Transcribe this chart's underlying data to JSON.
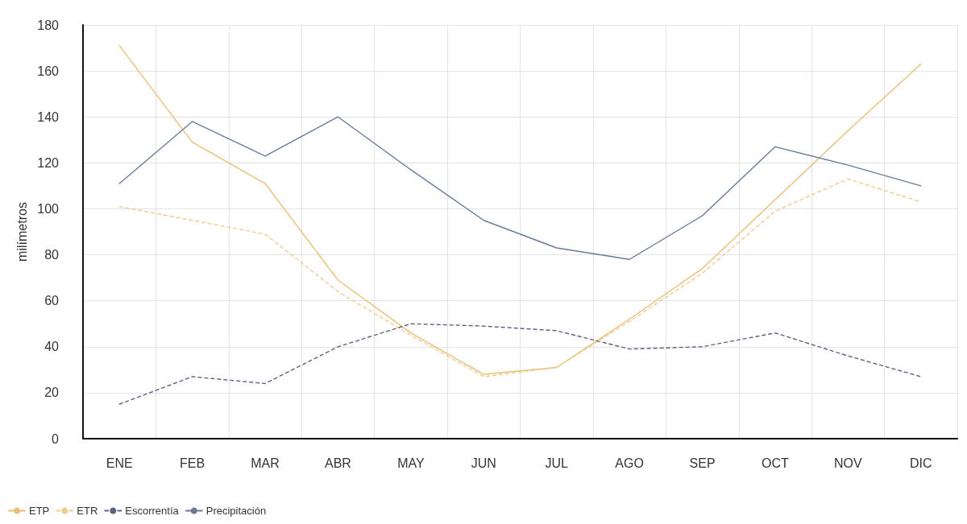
{
  "chart_data": {
    "type": "line",
    "ylabel": "milímetros",
    "categories": [
      "ENE",
      "FEB",
      "MAR",
      "ABR",
      "MAY",
      "JUN",
      "JUL",
      "AGO",
      "SEP",
      "OCT",
      "NOV",
      "DIC"
    ],
    "series": [
      {
        "name": "ETP",
        "color": "#e8c07a",
        "line_style": "solid",
        "values": [
          171,
          129,
          111,
          69,
          46,
          28,
          31,
          52,
          74,
          104,
          134,
          163
        ]
      },
      {
        "name": "ETR",
        "color": "#eecb8e",
        "line_style": "dashed",
        "values": [
          101,
          95,
          89,
          64,
          45,
          27,
          31,
          51,
          72,
          99,
          113,
          103
        ]
      },
      {
        "name": "Escorrentía",
        "color": "#5a6480",
        "line_style": "dashed",
        "values": [
          15,
          27,
          24,
          40,
          50,
          49,
          47,
          39,
          40,
          46,
          36,
          27
        ]
      },
      {
        "name": "Precipitación",
        "color": "#6a7a98",
        "line_style": "solid",
        "values": [
          111,
          138,
          123,
          140,
          117,
          95,
          83,
          78,
          97,
          127,
          119,
          110
        ]
      }
    ],
    "ylim": [
      0,
      180
    ],
    "yticks": [
      0,
      20,
      40,
      60,
      80,
      100,
      120,
      140,
      160,
      180
    ],
    "grid": true,
    "legend": "bottom left",
    "marker": "none"
  }
}
